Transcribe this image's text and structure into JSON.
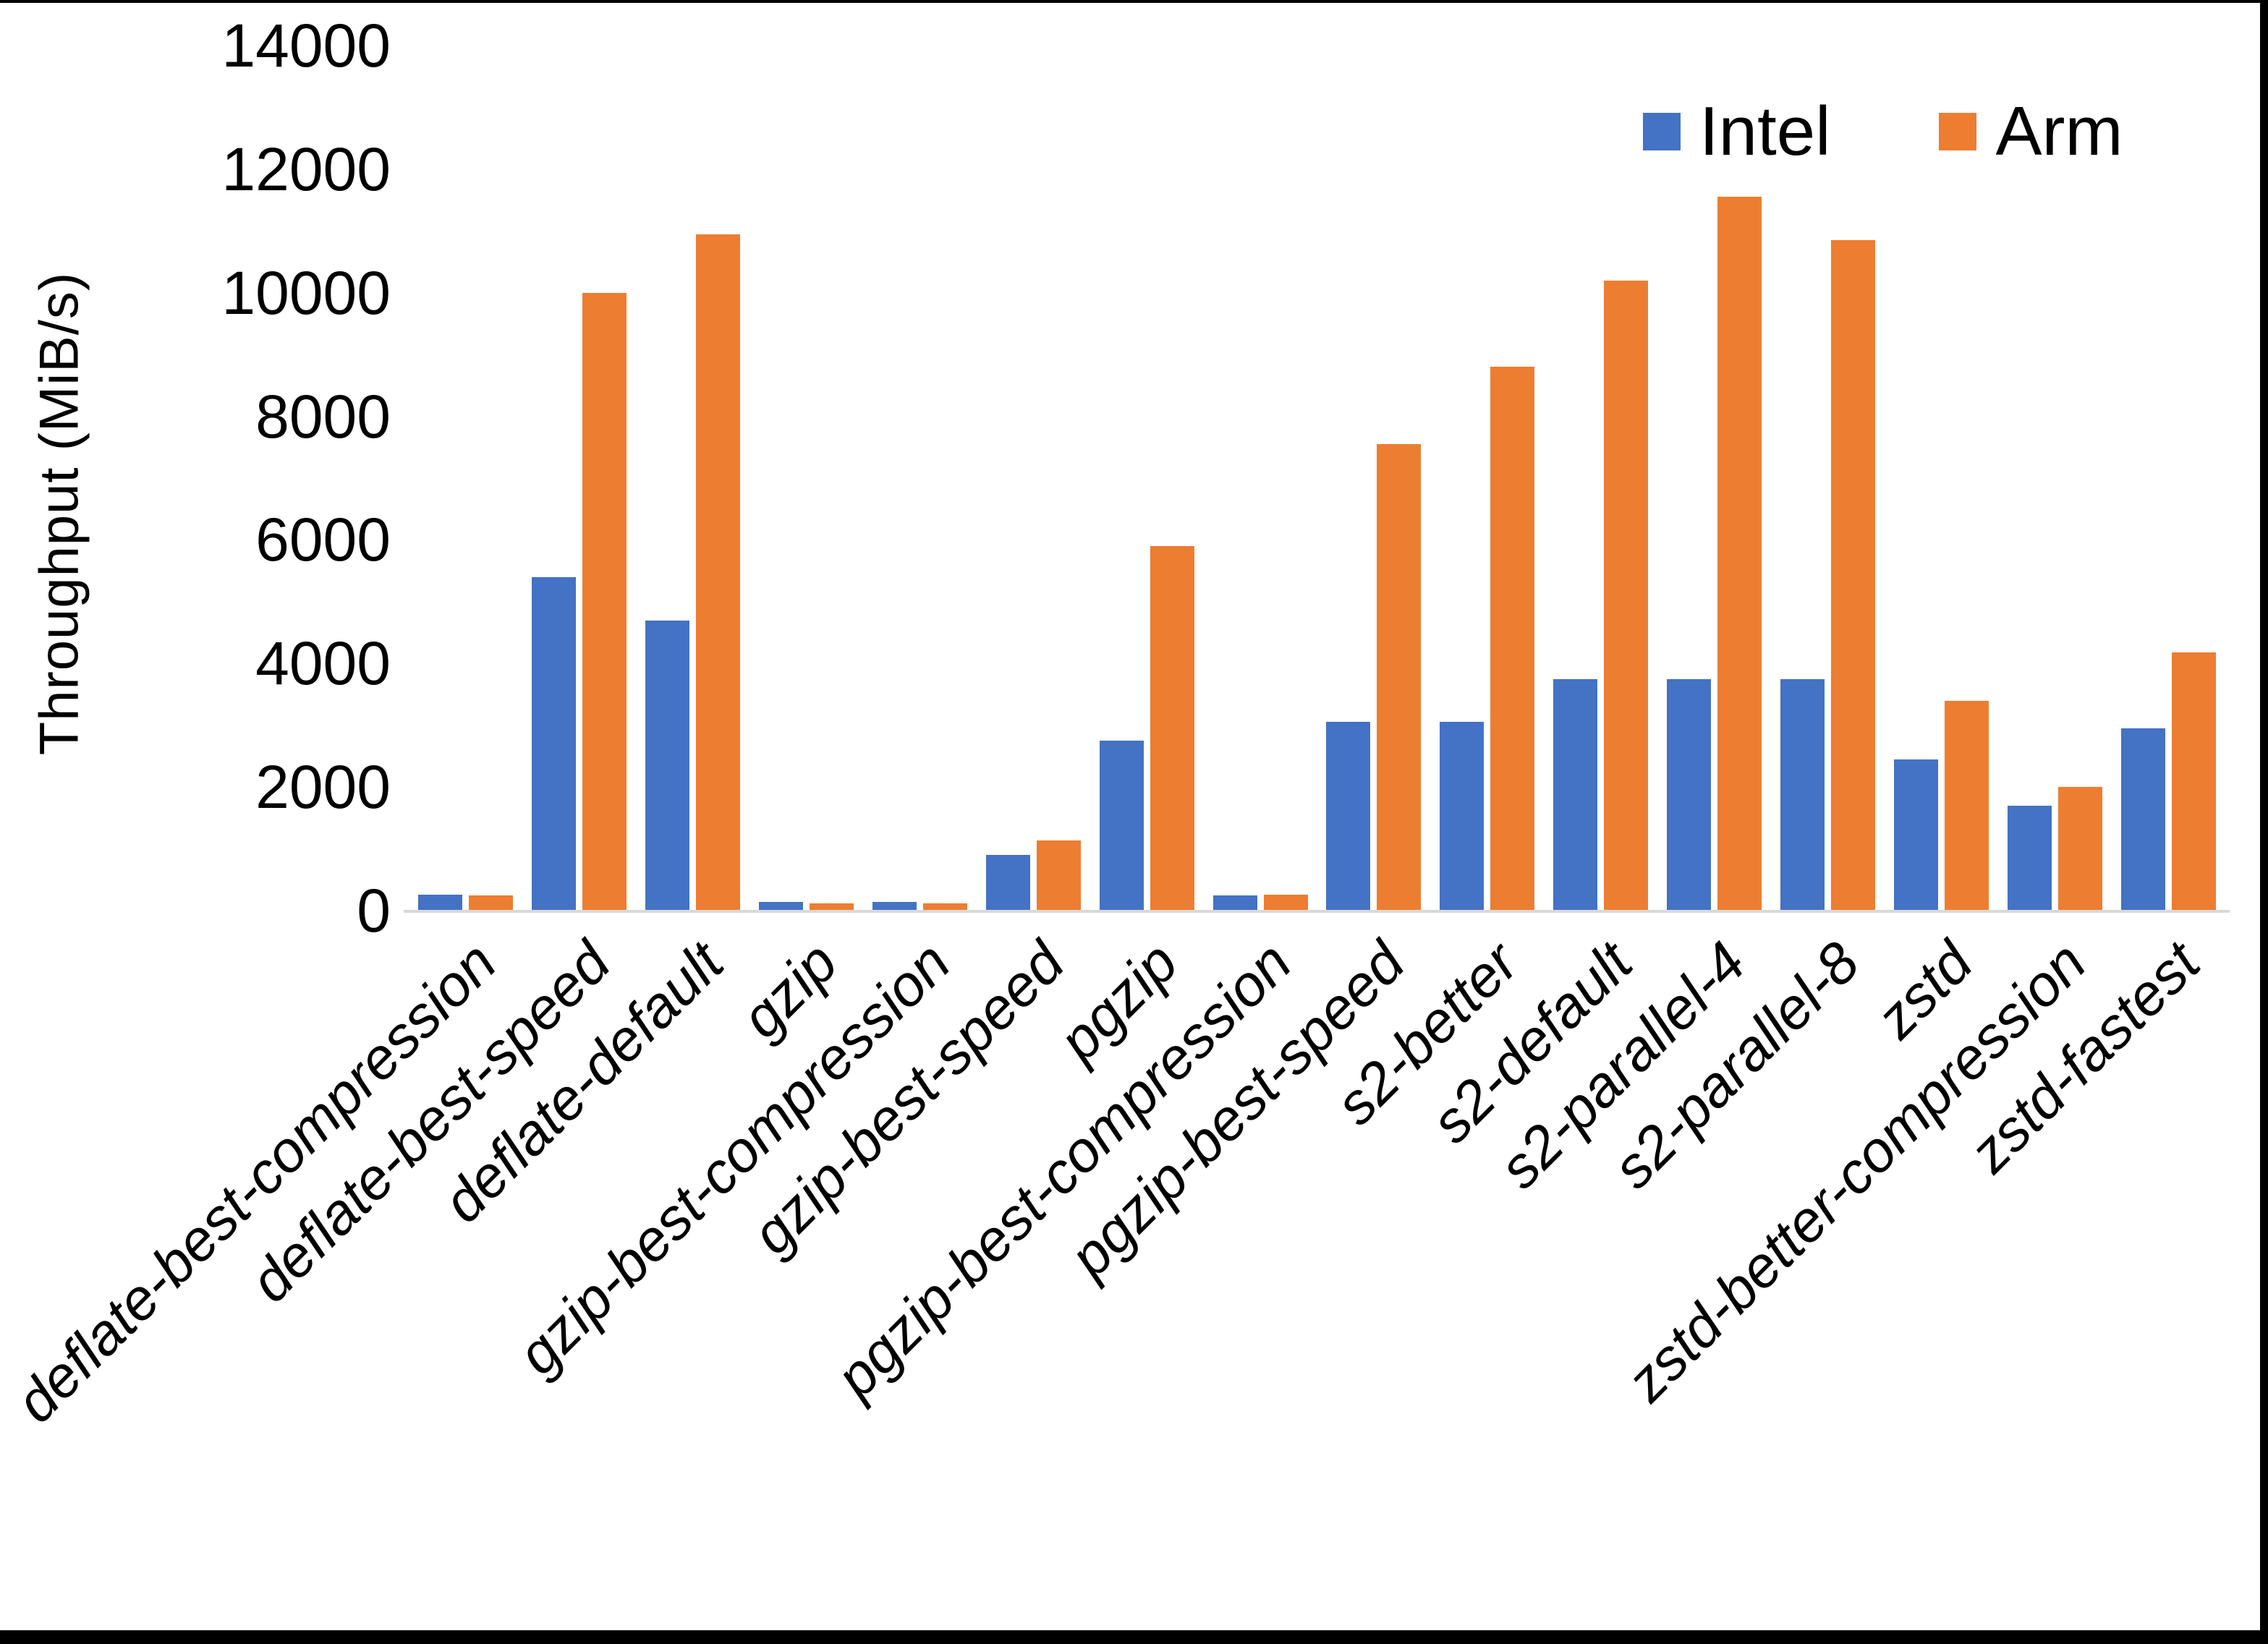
{
  "frame": {
    "border_color": "#000000"
  },
  "colors": {
    "intel": "#4472C4",
    "arm": "#ED7D31",
    "axis_line": "#D9D9D9",
    "text": "#000000",
    "background": "#FFFFFF"
  },
  "chart_data": {
    "type": "bar",
    "title": "",
    "xlabel": "",
    "ylabel": "Throughput (MiB/s)",
    "ylim": [
      0,
      14000
    ],
    "yticks": [
      0,
      2000,
      4000,
      6000,
      8000,
      10000,
      12000,
      14000
    ],
    "grid": false,
    "legend_position": "top-right",
    "categories": [
      "deflate-best-compression",
      "deflate-best-speed",
      "deflate-default",
      "gzip",
      "gzip-best-compression",
      "gzip-best-speed",
      "pgzip",
      "pgzip-best-compression",
      "pgzip-best-speed",
      "s2-better",
      "s2-default",
      "s2-parallel-4",
      "s2-parallel-8",
      "zstd",
      "zstd-better-compression",
      "zstd-fastest"
    ],
    "series": [
      {
        "name": "Intel",
        "color": "#4472C4",
        "values": [
          260,
          5400,
          4700,
          140,
          140,
          900,
          2750,
          250,
          3050,
          3050,
          3750,
          3750,
          3750,
          2450,
          1700,
          2950
        ]
      },
      {
        "name": "Arm",
        "color": "#ED7D31",
        "values": [
          250,
          10000,
          10950,
          120,
          120,
          1130,
          5900,
          260,
          7550,
          8800,
          10200,
          11550,
          10850,
          3400,
          2000,
          4180
        ]
      }
    ]
  }
}
